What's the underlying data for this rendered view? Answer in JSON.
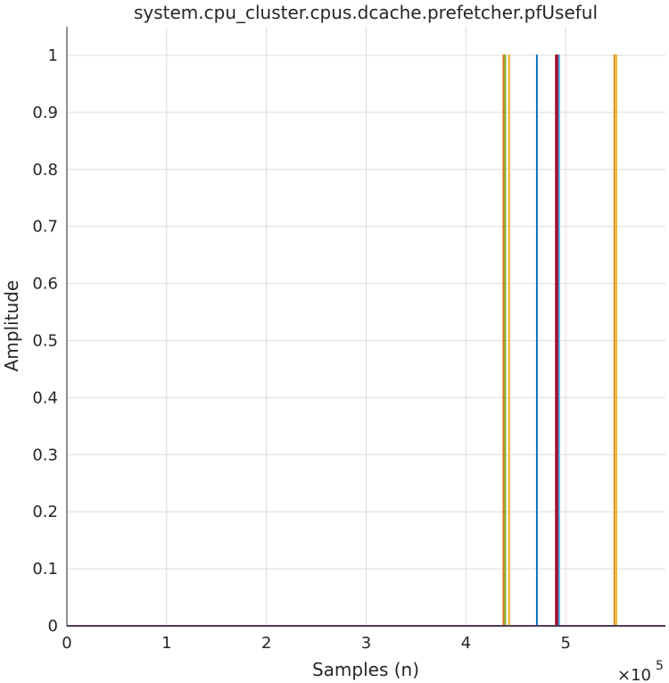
{
  "chart_data": {
    "type": "line",
    "title": "system.cpu_cluster.cpus.dcache.prefetcher.pfUseful",
    "xlabel": "Samples (n)",
    "ylabel": "Amplitude",
    "x_exponent_base": "×10",
    "x_exponent_power": "5",
    "xlim": [
      0,
      600000
    ],
    "ylim": [
      0,
      1.05
    ],
    "x_ticks": [
      0,
      100000,
      200000,
      300000,
      400000,
      500000
    ],
    "x_tick_labels": [
      "0",
      "1",
      "2",
      "3",
      "4",
      "5"
    ],
    "y_ticks": [
      0,
      0.1,
      0.2,
      0.3,
      0.4,
      0.5,
      0.6,
      0.7,
      0.8,
      0.9,
      1
    ],
    "y_tick_labels": [
      "0",
      "0.1",
      "0.2",
      "0.3",
      "0.4",
      "0.5",
      "0.6",
      "0.7",
      "0.8",
      "0.9",
      "1"
    ],
    "grid": true,
    "baseline": {
      "y": 0,
      "color": "#7E2F8E"
    },
    "series": [
      {
        "color": "#0072BD",
        "pulses": [
          [
            471000,
            471300
          ]
        ]
      },
      {
        "color": "#D95319",
        "pulses": [
          [
            437500,
            438000
          ],
          [
            548700,
            549200
          ]
        ]
      },
      {
        "color": "#EDB120",
        "pulses": [
          [
            438500,
            439000
          ],
          [
            443000,
            443500
          ],
          [
            549300,
            551000
          ]
        ]
      },
      {
        "color": "#7E2F8E",
        "pulses": [
          [
            492000,
            492500
          ]
        ]
      },
      {
        "color": "#77AC30",
        "pulses": [
          [
            439200,
            439600
          ]
        ]
      },
      {
        "color": "#A2142F",
        "pulses": [
          [
            490000,
            491000
          ],
          [
            492700,
            493200
          ]
        ]
      },
      {
        "color": "#4DBEEE",
        "pulses": [
          [
            493500,
            493700
          ]
        ]
      }
    ]
  }
}
